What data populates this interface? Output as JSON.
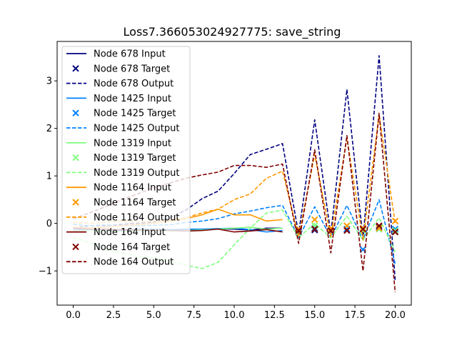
{
  "chart_data": {
    "type": "line",
    "title": "Loss7.366053024927775: save_string",
    "xlabel": "",
    "ylabel": "",
    "xlim": [
      -1,
      21
    ],
    "ylim": [
      -1.72,
      3.83
    ],
    "x_ticks": [
      0,
      2.5,
      5,
      7.5,
      10,
      12.5,
      15,
      17.5,
      20
    ],
    "x_tick_labels": [
      "0.0",
      "2.5",
      "5.0",
      "7.5",
      "10.0",
      "12.5",
      "15.0",
      "17.5",
      "20.0"
    ],
    "y_ticks": [
      -1,
      0,
      1,
      2,
      3
    ],
    "y_tick_labels": [
      "−1",
      "0",
      "1",
      "2",
      "3"
    ],
    "grid": false,
    "legend_position": "upper-left",
    "series": [
      {
        "name": "Node 678 Input",
        "kind": "input",
        "color": "#000080",
        "x": [
          0,
          1,
          2,
          3,
          4,
          5,
          6,
          7,
          8,
          9,
          10,
          11,
          12,
          13
        ],
        "y": [
          -0.12,
          -0.14,
          -0.13,
          -0.15,
          -0.14,
          -0.13,
          -0.14,
          -0.14,
          -0.13,
          -0.12,
          -0.12,
          -0.14,
          -0.1,
          -0.1
        ]
      },
      {
        "name": "Node 678 Target",
        "kind": "target",
        "color": "#000080",
        "x": [
          14,
          15,
          16,
          17,
          18,
          19,
          20
        ],
        "y": [
          -0.18,
          -0.14,
          -0.16,
          -0.12,
          -0.12,
          -0.08,
          -0.18
        ]
      },
      {
        "name": "Node 678 Output",
        "kind": "output",
        "color": "#000080",
        "x": [
          0,
          1,
          2,
          3,
          4,
          5,
          6,
          7,
          8,
          9,
          10,
          11,
          12,
          13,
          14,
          15,
          16,
          17,
          18,
          19,
          20
        ],
        "y": [
          -0.1,
          -0.05,
          -0.05,
          -0.02,
          0.0,
          0.03,
          0.12,
          0.28,
          0.52,
          0.68,
          1.05,
          1.45,
          1.56,
          1.68,
          -0.22,
          2.18,
          -0.22,
          2.82,
          -0.32,
          3.53,
          -1.2
        ]
      },
      {
        "name": "Node 1425 Input",
        "kind": "input",
        "color": "#0080ff",
        "x": [
          0,
          1,
          2,
          3,
          4,
          5,
          6,
          7,
          8,
          9,
          10,
          11,
          12,
          13
        ],
        "y": [
          -0.12,
          -0.13,
          -0.12,
          -0.13,
          -0.12,
          -0.12,
          -0.13,
          -0.12,
          -0.12,
          -0.11,
          -0.1,
          -0.13,
          -0.18,
          -0.15
        ]
      },
      {
        "name": "Node 1425 Target",
        "kind": "target",
        "color": "#0080ff",
        "x": [
          14,
          15,
          16,
          17,
          18,
          19,
          20
        ],
        "y": [
          -0.15,
          -0.1,
          -0.15,
          -0.12,
          -0.55,
          -0.12,
          -0.12
        ]
      },
      {
        "name": "Node 1425 Output",
        "kind": "output",
        "color": "#0080ff",
        "x": [
          0,
          1,
          2,
          3,
          4,
          5,
          6,
          7,
          8,
          9,
          10,
          11,
          12,
          13,
          14,
          15,
          16,
          17,
          18,
          19,
          20
        ],
        "y": [
          -0.02,
          -0.05,
          -0.03,
          -0.05,
          -0.05,
          -0.04,
          -0.03,
          0.02,
          0.05,
          0.1,
          0.2,
          0.26,
          0.33,
          0.38,
          -0.3,
          0.35,
          -0.3,
          0.38,
          -0.35,
          0.5,
          -0.85
        ]
      },
      {
        "name": "Node 1319 Input",
        "kind": "input",
        "color": "#80ff80",
        "x": [
          0,
          1,
          2,
          3,
          4,
          5,
          6,
          7,
          8,
          9,
          10,
          11,
          12,
          13
        ],
        "y": [
          -0.15,
          -0.15,
          -0.16,
          -0.17,
          -0.16,
          -0.15,
          -0.16,
          -0.15,
          -0.14,
          -0.12,
          -0.1,
          -0.08,
          -0.12,
          -0.1
        ]
      },
      {
        "name": "Node 1319 Target",
        "kind": "target",
        "color": "#80ff80",
        "x": [
          14,
          15,
          16,
          17,
          18,
          19,
          20
        ],
        "y": [
          -0.15,
          -0.05,
          -0.15,
          -0.05,
          -0.15,
          -0.12,
          -0.15
        ]
      },
      {
        "name": "Node 1319 Output",
        "kind": "output",
        "color": "#80ff80",
        "x": [
          0,
          1,
          2,
          3,
          4,
          5,
          6,
          7,
          8,
          9,
          10,
          11,
          12,
          13,
          14,
          15,
          16,
          17,
          18,
          19,
          20
        ],
        "y": [
          -0.3,
          -0.4,
          -0.55,
          -0.62,
          -0.7,
          -0.72,
          -0.8,
          -0.88,
          -0.95,
          -0.82,
          -0.45,
          -0.1,
          0.22,
          0.28,
          -0.3,
          0.0,
          -0.3,
          0.15,
          -0.35,
          0.12,
          -0.6
        ]
      },
      {
        "name": "Node 1164 Input",
        "kind": "input",
        "color": "#ff9900",
        "x": [
          0,
          1,
          2,
          3,
          4,
          5,
          6,
          7,
          8,
          9,
          10,
          11,
          12,
          13
        ],
        "y": [
          -0.08,
          -0.1,
          -0.08,
          -0.05,
          -0.03,
          0.0,
          0.05,
          0.1,
          0.18,
          0.3,
          0.18,
          0.18,
          0.05,
          0.08
        ]
      },
      {
        "name": "Node 1164 Target",
        "kind": "target",
        "color": "#ff9900",
        "x": [
          14,
          15,
          16,
          17,
          18,
          19,
          20
        ],
        "y": [
          -0.12,
          0.08,
          -0.1,
          -0.05,
          -0.1,
          -0.1,
          0.05
        ]
      },
      {
        "name": "Node 1164 Output",
        "kind": "output",
        "color": "#ff9900",
        "x": [
          0,
          1,
          2,
          3,
          4,
          5,
          6,
          7,
          8,
          9,
          10,
          11,
          12,
          13,
          14,
          15,
          16,
          17,
          18,
          19,
          20
        ],
        "y": [
          0.02,
          0.0,
          0.03,
          0.05,
          0.02,
          0.05,
          0.08,
          0.12,
          0.22,
          0.3,
          0.5,
          0.62,
          0.95,
          1.1,
          -0.28,
          1.45,
          -0.28,
          1.8,
          -0.35,
          2.28,
          0.0
        ]
      },
      {
        "name": "Node 164 Input",
        "kind": "input",
        "color": "#800000",
        "x": [
          0,
          1,
          2,
          3,
          4,
          5,
          6,
          7,
          8,
          9,
          10,
          11,
          12,
          13
        ],
        "y": [
          -0.1,
          -0.12,
          -0.12,
          -0.13,
          -0.14,
          -0.14,
          -0.15,
          -0.16,
          -0.15,
          -0.12,
          -0.18,
          -0.16,
          -0.13,
          -0.18
        ]
      },
      {
        "name": "Node 164 Target",
        "kind": "target",
        "color": "#800000",
        "x": [
          14,
          15,
          16,
          17,
          18,
          19,
          20
        ],
        "y": [
          -0.15,
          -0.12,
          -0.15,
          -0.15,
          -0.12,
          -0.05,
          -0.18
        ]
      },
      {
        "name": "Node 164 Output",
        "kind": "output",
        "color": "#800000",
        "x": [
          0,
          1,
          2,
          3,
          4,
          5,
          6,
          7,
          8,
          9,
          10,
          11,
          12,
          13,
          14,
          15,
          16,
          17,
          18,
          19,
          20
        ],
        "y": [
          0.1,
          0.22,
          0.35,
          0.5,
          0.62,
          0.75,
          0.85,
          0.95,
          1.02,
          1.08,
          1.22,
          1.22,
          1.18,
          1.25,
          -0.42,
          1.55,
          -0.62,
          1.85,
          -1.0,
          2.32,
          -1.45
        ]
      }
    ]
  }
}
